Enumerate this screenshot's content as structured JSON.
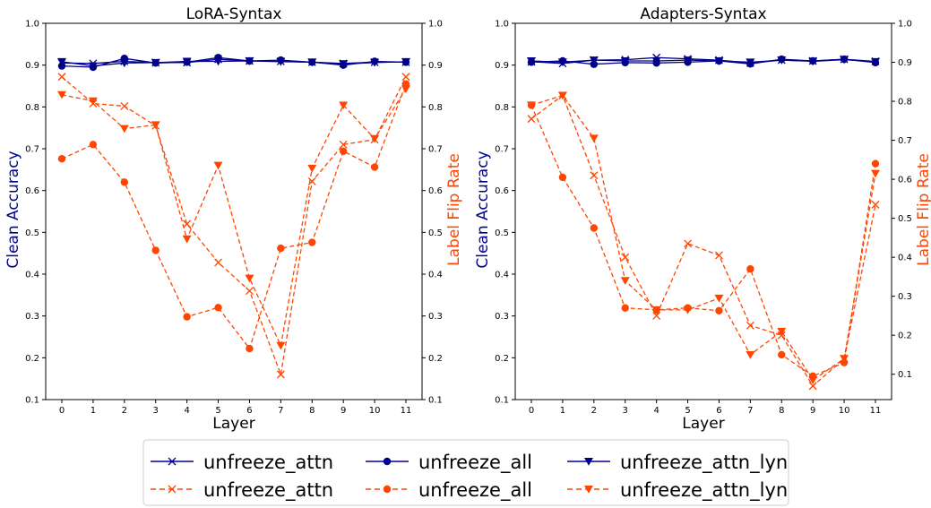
{
  "colors": {
    "clean": "#00008b",
    "flip": "#ff4500",
    "axis": "#000000",
    "legend_border": "#cccccc"
  },
  "legend": {
    "columns": [
      {
        "label": "unfreeze_attn",
        "marker": "x"
      },
      {
        "label": "unfreeze_all",
        "marker": "circle"
      },
      {
        "label": "unfreeze_attn_lyn",
        "marker": "triangle-down"
      }
    ],
    "rows": [
      {
        "metric": "clean",
        "line": "solid"
      },
      {
        "metric": "flip",
        "line": "dashed"
      }
    ]
  },
  "chart_data": [
    {
      "type": "line",
      "title": "LoRA-Syntax",
      "xlabel": "Layer",
      "ylabel_left": "Clean Accuracy",
      "ylabel_right": "Label Flip Rate",
      "categories": [
        0,
        1,
        2,
        3,
        4,
        5,
        6,
        7,
        8,
        9,
        10,
        11
      ],
      "ylim_left": [
        0.1,
        1.0
      ],
      "ylim_right": [
        0.1,
        1.0
      ],
      "yticks_left": [
        0.1,
        0.2,
        0.3,
        0.4,
        0.5,
        0.6,
        0.7,
        0.8,
        0.9,
        1.0
      ],
      "yticks_right": [
        0.1,
        0.2,
        0.3,
        0.4,
        0.5,
        0.6,
        0.7,
        0.8,
        0.9,
        1.0
      ],
      "series": [
        {
          "name": "unfreeze_attn",
          "axis": "left",
          "metric": "clean",
          "marker": "x",
          "values": [
            0.905,
            0.904,
            0.909,
            0.906,
            0.906,
            0.914,
            0.91,
            0.909,
            0.907,
            0.904,
            0.907,
            0.907
          ]
        },
        {
          "name": "unfreeze_all",
          "axis": "left",
          "metric": "clean",
          "marker": "circle",
          "values": [
            0.898,
            0.895,
            0.916,
            0.905,
            0.907,
            0.918,
            0.91,
            0.912,
            0.907,
            0.9,
            0.909,
            0.907
          ]
        },
        {
          "name": "unfreeze_attn_lyn",
          "axis": "left",
          "metric": "clean",
          "marker": "triangle-down",
          "values": [
            0.908,
            0.898,
            0.905,
            0.906,
            0.909,
            0.909,
            0.91,
            0.908,
            0.907,
            0.903,
            0.906,
            0.908
          ]
        },
        {
          "name": "unfreeze_attn",
          "axis": "right",
          "metric": "flip",
          "marker": "x",
          "values": [
            0.872,
            0.808,
            0.802,
            0.755,
            0.52,
            0.428,
            0.36,
            0.16,
            0.622,
            0.71,
            0.722,
            0.872
          ]
        },
        {
          "name": "unfreeze_all",
          "axis": "right",
          "metric": "flip",
          "marker": "circle",
          "values": [
            0.676,
            0.71,
            0.62,
            0.457,
            0.298,
            0.32,
            0.222,
            0.462,
            0.476,
            0.694,
            0.656,
            0.855
          ]
        },
        {
          "name": "unfreeze_attn_lyn",
          "axis": "right",
          "metric": "flip",
          "marker": "triangle-down",
          "values": [
            0.829,
            0.814,
            0.748,
            0.757,
            0.484,
            0.66,
            0.39,
            0.229,
            0.653,
            0.804,
            0.724,
            0.843
          ]
        }
      ]
    },
    {
      "type": "line",
      "title": "Adapters-Syntax",
      "xlabel": "Layer",
      "ylabel_left": "Clean Accuracy",
      "ylabel_right": "Label Flip Rate",
      "categories": [
        0,
        1,
        2,
        3,
        4,
        5,
        6,
        7,
        8,
        9,
        10,
        11
      ],
      "ylim_left": [
        0.1,
        1.0
      ],
      "ylim_right": [
        0.035,
        1.0
      ],
      "yticks_left": [
        0.1,
        0.2,
        0.3,
        0.4,
        0.5,
        0.6,
        0.7,
        0.8,
        0.9,
        1.0
      ],
      "yticks_right": [
        0.1,
        0.2,
        0.3,
        0.4,
        0.5,
        0.6,
        0.7,
        0.8,
        0.9,
        1.0
      ],
      "series": [
        {
          "name": "unfreeze_attn",
          "axis": "left",
          "metric": "clean",
          "marker": "x",
          "values": [
            0.908,
            0.904,
            0.912,
            0.913,
            0.918,
            0.915,
            0.912,
            0.905,
            0.912,
            0.91,
            0.914,
            0.909
          ]
        },
        {
          "name": "unfreeze_all",
          "axis": "left",
          "metric": "clean",
          "marker": "circle",
          "values": [
            0.907,
            0.91,
            0.902,
            0.906,
            0.905,
            0.907,
            0.91,
            0.903,
            0.914,
            0.91,
            0.914,
            0.906
          ]
        },
        {
          "name": "unfreeze_attn_lyn",
          "axis": "left",
          "metric": "clean",
          "marker": "triangle-down",
          "values": [
            0.91,
            0.907,
            0.912,
            0.91,
            0.91,
            0.912,
            0.91,
            0.907,
            0.912,
            0.909,
            0.913,
            0.908
          ]
        },
        {
          "name": "unfreeze_attn",
          "axis": "right",
          "metric": "flip",
          "marker": "x",
          "values": [
            0.755,
            0.815,
            0.61,
            0.4,
            0.25,
            0.435,
            0.405,
            0.225,
            0.2,
            0.07,
            0.14,
            0.535
          ]
        },
        {
          "name": "unfreeze_all",
          "axis": "right",
          "metric": "flip",
          "marker": "circle",
          "values": [
            0.79,
            0.605,
            0.475,
            0.27,
            0.265,
            0.27,
            0.263,
            0.37,
            0.15,
            0.095,
            0.13,
            0.64
          ]
        },
        {
          "name": "unfreeze_attn_lyn",
          "axis": "right",
          "metric": "flip",
          "marker": "triangle-down",
          "values": [
            0.79,
            0.815,
            0.705,
            0.34,
            0.265,
            0.265,
            0.295,
            0.15,
            0.21,
            0.085,
            0.14,
            0.615
          ]
        }
      ]
    }
  ]
}
